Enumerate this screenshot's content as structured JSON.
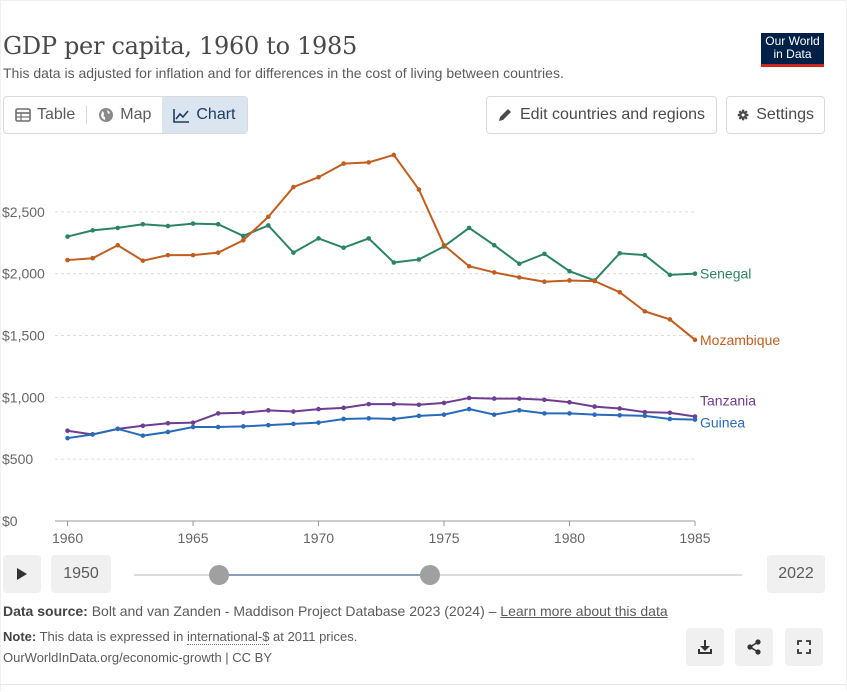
{
  "header": {
    "title": "GDP per capita, 1960 to 1985",
    "subtitle": "This data is adjusted for inflation and for differences in the cost of living between countries.",
    "logo_line1": "Our World",
    "logo_line2": "in Data"
  },
  "tabs": [
    {
      "label": "Table",
      "icon": "table-icon"
    },
    {
      "label": "Map",
      "icon": "globe-icon"
    },
    {
      "label": "Chart",
      "icon": "line-chart-icon",
      "active": true
    }
  ],
  "toolbar": {
    "edit_label": "Edit countries and regions",
    "settings_label": "Settings"
  },
  "timeline": {
    "start_year": "1950",
    "end_year": "2022"
  },
  "footer": {
    "source_label": "Data source:",
    "source_text": "Bolt and van Zanden - Maddison Project Database 2023 (2024) –",
    "learn_more": "Learn more about this data",
    "note_label": "Note:",
    "note_text_a": "This data is expressed in",
    "note_intl": "international-$",
    "note_text_b": "at 2011 prices.",
    "credit": "OurWorldInData.org/economic-growth | CC BY"
  },
  "chart_data": {
    "type": "line",
    "title": "GDP per capita, 1960 to 1985",
    "xlim": [
      1959.5,
      1985
    ],
    "ylim": [
      0,
      3000
    ],
    "y_ticks": [
      0,
      500,
      1000,
      1500,
      2000,
      2500
    ],
    "y_tick_labels": [
      "$0",
      "$500",
      "$1,000",
      "$1,500",
      "$2,000",
      "$2,500"
    ],
    "x_ticks": [
      1960,
      1965,
      1970,
      1975,
      1980,
      1985
    ],
    "x_tick_labels": [
      "1960",
      "1965",
      "1970",
      "1975",
      "1980",
      "1985"
    ],
    "grid": "horizontal dotted",
    "x": [
      1960,
      1961,
      1962,
      1963,
      1964,
      1965,
      1966,
      1967,
      1968,
      1969,
      1970,
      1971,
      1972,
      1973,
      1974,
      1975,
      1976,
      1977,
      1978,
      1979,
      1980,
      1981,
      1982,
      1983,
      1984,
      1985
    ],
    "series": [
      {
        "name": "Senegal",
        "color": "#2c8465",
        "values": [
          2300,
          2350,
          2370,
          2400,
          2385,
          2405,
          2400,
          2305,
          2390,
          2170,
          2285,
          2210,
          2285,
          2090,
          2115,
          2220,
          2370,
          2230,
          2080,
          2160,
          2020,
          1945,
          2165,
          2150,
          1990,
          2000
        ]
      },
      {
        "name": "Mozambique",
        "color": "#c15e1f",
        "values": [
          2110,
          2125,
          2230,
          2105,
          2150,
          2150,
          2170,
          2270,
          2460,
          2700,
          2780,
          2890,
          2900,
          2960,
          2680,
          2230,
          2060,
          2010,
          1970,
          1935,
          1945,
          1940,
          1850,
          1695,
          1630,
          1465
        ]
      },
      {
        "name": "Tanzania",
        "color": "#6d3e91",
        "values": [
          730,
          700,
          745,
          770,
          790,
          795,
          870,
          875,
          895,
          885,
          905,
          915,
          945,
          945,
          940,
          955,
          995,
          990,
          990,
          980,
          960,
          925,
          910,
          880,
          875,
          845
        ]
      },
      {
        "name": "Guinea",
        "color": "#286bbb",
        "values": [
          670,
          700,
          745,
          690,
          720,
          760,
          760,
          765,
          775,
          785,
          795,
          825,
          830,
          825,
          850,
          860,
          905,
          860,
          895,
          870,
          870,
          860,
          855,
          850,
          825,
          820
        ]
      }
    ]
  }
}
